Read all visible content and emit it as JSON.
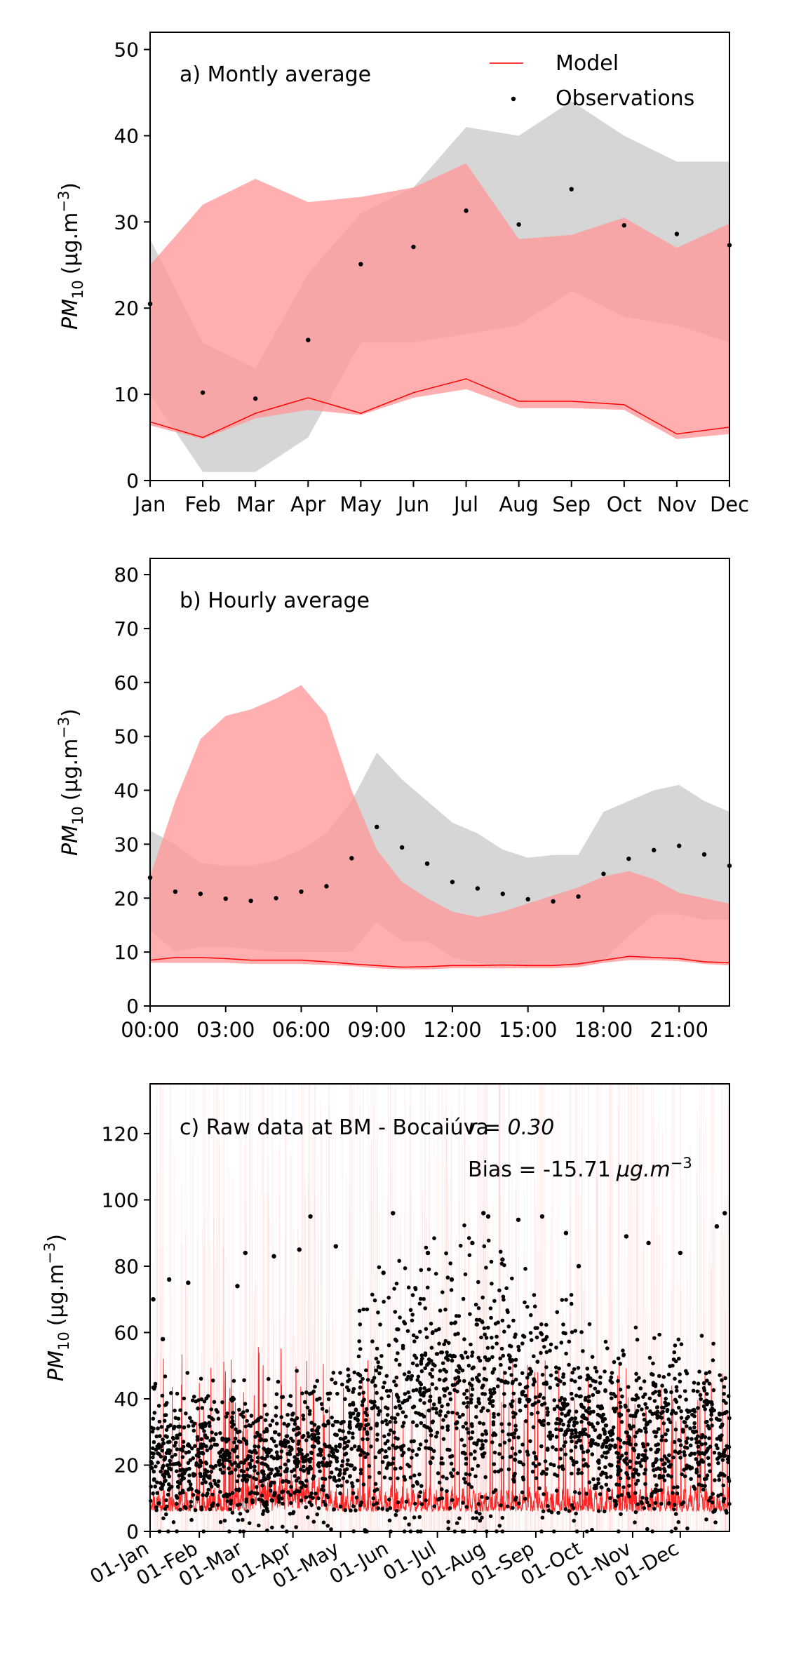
{
  "chart_data": [
    {
      "type": "line",
      "annotation": "a) Montly average",
      "ylabel_main": "PM",
      "ylabel_sub": "10",
      "ylabel_unit": "(μg.m",
      "ylabel_exp": "−3",
      "ylabel_close": ")",
      "ylim": [
        0,
        52
      ],
      "yticks": [
        0,
        10,
        20,
        30,
        40,
        50
      ],
      "x": [
        0,
        1,
        2,
        3,
        4,
        5,
        6,
        7,
        8,
        9,
        10,
        11
      ],
      "xlim": [
        0,
        11
      ],
      "xticks": [
        0,
        1,
        2,
        3,
        4,
        5,
        6,
        7,
        8,
        9,
        10,
        11
      ],
      "xtick_labels": [
        "Jan",
        "Feb",
        "Mar",
        "Apr",
        "May",
        "Jun",
        "Jul",
        "Aug",
        "Sep",
        "Oct",
        "Nov",
        "Dec"
      ],
      "legend": {
        "placement": "top-right",
        "model": "Model",
        "observations": "Observations"
      },
      "model": [
        6.8,
        5.0,
        7.8,
        9.6,
        7.8,
        10.2,
        11.8,
        9.2,
        9.2,
        8.8,
        5.4,
        6.2
      ],
      "model_band_low": [
        6.4,
        4.8,
        7.2,
        8.2,
        7.6,
        9.6,
        10.6,
        8.4,
        8.4,
        8.2,
        4.8,
        5.4
      ],
      "model_band_high": [
        25.0,
        32.0,
        35.0,
        32.3,
        32.9,
        34.0,
        36.8,
        28.0,
        28.5,
        30.5,
        27.0,
        29.8
      ],
      "model_p25": [
        7.0,
        5.2,
        8.0,
        9.0,
        16.0,
        16.0,
        17.0,
        18.0,
        22.0,
        19.0,
        18.0,
        16.0
      ],
      "obs": [
        20.5,
        10.2,
        9.5,
        16.3,
        25.1,
        27.1,
        31.3,
        29.7,
        33.8,
        29.6,
        28.6,
        27.3
      ],
      "obs_band_low": [
        10.0,
        1.0,
        1.0,
        5.0,
        16.0,
        16.0,
        17.0,
        18.0,
        22.0,
        19.0,
        18.0,
        16.0
      ],
      "obs_band_high": [
        28.0,
        16.0,
        13.0,
        24.0,
        31.0,
        34.0,
        41.0,
        40.0,
        44.0,
        40.0,
        37.0,
        37.0
      ],
      "colors": {
        "model": "#ff0000",
        "model_band": "#ff9999",
        "obs_band": "#bbbbbb",
        "obs": "#000000"
      }
    },
    {
      "type": "line",
      "annotation": "b) Hourly average",
      "ylabel_main": "PM",
      "ylabel_sub": "10",
      "ylabel_unit": "(μg.m",
      "ylabel_exp": "−3",
      "ylabel_close": ")",
      "ylim": [
        0,
        83
      ],
      "yticks": [
        0,
        10,
        20,
        30,
        40,
        50,
        60,
        70,
        80
      ],
      "x": [
        0,
        1,
        2,
        3,
        4,
        5,
        6,
        7,
        8,
        9,
        10,
        11,
        12,
        13,
        14,
        15,
        16,
        17,
        18,
        19,
        20,
        21,
        22,
        23
      ],
      "xlim": [
        0,
        23
      ],
      "xticks": [
        0,
        3,
        6,
        9,
        12,
        15,
        18,
        21
      ],
      "xtick_labels": [
        "00:00",
        "03:00",
        "06:00",
        "09:00",
        "12:00",
        "15:00",
        "18:00",
        "21:00"
      ],
      "model": [
        8.5,
        9.0,
        9.0,
        8.8,
        8.5,
        8.5,
        8.5,
        8.2,
        7.8,
        7.5,
        7.2,
        7.3,
        7.5,
        7.5,
        7.6,
        7.5,
        7.5,
        7.8,
        8.5,
        9.2,
        9.0,
        8.8,
        8.2,
        8.0
      ],
      "model_band_low": [
        8.0,
        8.0,
        8.0,
        8.0,
        7.8,
        7.8,
        7.8,
        7.6,
        7.4,
        7.0,
        6.8,
        6.8,
        7.0,
        7.0,
        7.0,
        7.0,
        7.0,
        7.2,
        8.0,
        8.5,
        8.5,
        8.3,
        7.8,
        7.5
      ],
      "model_band_high": [
        24.0,
        38.0,
        49.5,
        53.8,
        55.0,
        57.0,
        59.5,
        54.0,
        40.0,
        29.0,
        23.0,
        20.0,
        17.5,
        16.5,
        17.5,
        19.0,
        20.5,
        22.0,
        24.0,
        25.0,
        23.5,
        21.0,
        20.0,
        19.0
      ],
      "model_p25": [
        14.0,
        10.0,
        11.0,
        11.0,
        10.5,
        10.0,
        10.0,
        10.0,
        10.0,
        15.5,
        12.0,
        12.0,
        9.0,
        8.0,
        7.5,
        7.5,
        7.5,
        7.5,
        8.5,
        13.0,
        17.0,
        17.0,
        16.0,
        16.0
      ],
      "obs": [
        23.8,
        21.2,
        20.8,
        19.9,
        19.5,
        20.0,
        21.2,
        22.2,
        27.4,
        33.2,
        29.4,
        26.4,
        23.0,
        21.8,
        20.8,
        19.8,
        19.4,
        20.3,
        24.5,
        27.3,
        28.9,
        29.7,
        28.1,
        26.0
      ],
      "obs_band_low": [
        14.0,
        10.0,
        11.0,
        11.0,
        10.5,
        10.0,
        10.0,
        10.0,
        10.0,
        15.5,
        12.0,
        12.0,
        9.0,
        8.0,
        7.5,
        7.5,
        7.5,
        7.5,
        8.5,
        13.0,
        17.0,
        17.0,
        16.0,
        16.0
      ],
      "obs_band_high": [
        32.5,
        30.0,
        26.5,
        26.0,
        26.0,
        27.0,
        29.0,
        32.0,
        38.0,
        47.0,
        42.0,
        38.0,
        34.0,
        32.0,
        29.0,
        27.5,
        28.0,
        28.0,
        36.0,
        38.0,
        40.0,
        41.0,
        38.0,
        36.0
      ],
      "colors": {
        "model": "#ff0000",
        "model_band": "#ff9999",
        "obs_band": "#bbbbbb",
        "obs": "#000000"
      }
    },
    {
      "type": "scatter",
      "annotation": "c) Raw data at BM - Bocaiúva",
      "r_label": "r = 0.30",
      "bias_label": "Bias = -15.71",
      "bias_unit": "μg.m",
      "bias_exp": "−3",
      "ylabel_main": "PM",
      "ylabel_sub": "10",
      "ylabel_unit": "(μg.m",
      "ylabel_exp": "−3",
      "ylabel_close": ")",
      "ylim": [
        0,
        135
      ],
      "yticks": [
        0,
        20,
        40,
        60,
        80,
        100,
        120
      ],
      "xlim": [
        0,
        365
      ],
      "xticks": [
        0,
        31,
        59,
        90,
        120,
        151,
        181,
        212,
        243,
        273,
        304,
        334
      ],
      "xtick_labels": [
        "01-Jan",
        "01-Feb",
        "01-Mar",
        "01-Apr",
        "01-May",
        "01-Jun",
        "01-Jul",
        "01-Aug",
        "01-Sep",
        "01-Oct",
        "01-Nov",
        "01-Dec"
      ],
      "obs_highlights": [
        {
          "day": 2,
          "value": 70
        },
        {
          "day": 8,
          "value": 58
        },
        {
          "day": 12,
          "value": 76
        },
        {
          "day": 24,
          "value": 75
        },
        {
          "day": 55,
          "value": 74
        },
        {
          "day": 60,
          "value": 84
        },
        {
          "day": 78,
          "value": 83
        },
        {
          "day": 94,
          "value": 85
        },
        {
          "day": 101,
          "value": 95
        },
        {
          "day": 117,
          "value": 86
        },
        {
          "day": 147,
          "value": 78
        },
        {
          "day": 153,
          "value": 96
        },
        {
          "day": 175,
          "value": 84
        },
        {
          "day": 190,
          "value": 76
        },
        {
          "day": 203,
          "value": 87
        },
        {
          "day": 210,
          "value": 96
        },
        {
          "day": 213,
          "value": 95
        },
        {
          "day": 222,
          "value": 82
        },
        {
          "day": 232,
          "value": 94
        },
        {
          "day": 247,
          "value": 95
        },
        {
          "day": 262,
          "value": 90
        },
        {
          "day": 270,
          "value": 80
        },
        {
          "day": 300,
          "value": 89
        },
        {
          "day": 314,
          "value": 87
        },
        {
          "day": 334,
          "value": 84
        },
        {
          "day": 357,
          "value": 92
        },
        {
          "day": 362,
          "value": 96
        }
      ],
      "colors": {
        "model": "#ff0000",
        "obs": "#000000"
      }
    }
  ]
}
